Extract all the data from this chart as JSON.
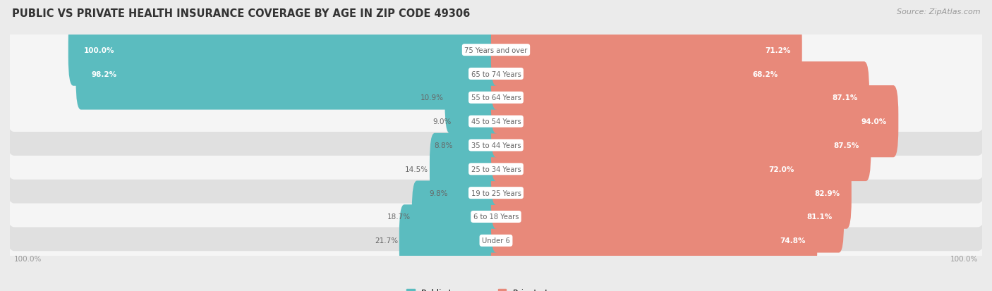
{
  "title": "PUBLIC VS PRIVATE HEALTH INSURANCE COVERAGE BY AGE IN ZIP CODE 49306",
  "source": "Source: ZipAtlas.com",
  "categories": [
    "Under 6",
    "6 to 18 Years",
    "19 to 25 Years",
    "25 to 34 Years",
    "35 to 44 Years",
    "45 to 54 Years",
    "55 to 64 Years",
    "65 to 74 Years",
    "75 Years and over"
  ],
  "public": [
    21.7,
    18.7,
    9.8,
    14.5,
    8.8,
    9.0,
    10.9,
    98.2,
    100.0
  ],
  "private": [
    74.8,
    81.1,
    82.9,
    72.0,
    87.5,
    94.0,
    87.1,
    68.2,
    71.2
  ],
  "public_color": "#5bbcbf",
  "private_color": "#e8897a",
  "bg_color": "#ebebeb",
  "row_bg_light": "#f5f5f5",
  "row_bg_dark": "#e0e0e0",
  "title_color": "#333333",
  "source_color": "#999999",
  "axis_label_color": "#999999",
  "white": "#ffffff",
  "dark_label": "#666666",
  "bar_height": 0.62,
  "max_val": 100.0,
  "pub_inside_threshold": 30.0
}
